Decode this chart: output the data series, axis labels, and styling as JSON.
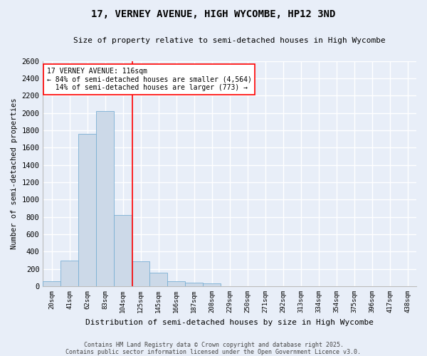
{
  "title": "17, VERNEY AVENUE, HIGH WYCOMBE, HP12 3ND",
  "subtitle": "Size of property relative to semi-detached houses in High Wycombe",
  "xlabel": "Distribution of semi-detached houses by size in High Wycombe",
  "ylabel": "Number of semi-detached properties",
  "bar_color": "#ccd9e8",
  "bar_edge_color": "#7aafd4",
  "background_color": "#e8eef8",
  "grid_color": "#ffffff",
  "categories": [
    "20sqm",
    "41sqm",
    "62sqm",
    "83sqm",
    "104sqm",
    "125sqm",
    "145sqm",
    "166sqm",
    "187sqm",
    "208sqm",
    "229sqm",
    "250sqm",
    "271sqm",
    "292sqm",
    "313sqm",
    "334sqm",
    "354sqm",
    "375sqm",
    "396sqm",
    "417sqm",
    "438sqm"
  ],
  "values": [
    60,
    300,
    1760,
    2020,
    820,
    290,
    155,
    55,
    45,
    30,
    0,
    0,
    0,
    0,
    0,
    0,
    0,
    0,
    0,
    0,
    0
  ],
  "ylim": [
    0,
    2600
  ],
  "yticks": [
    0,
    200,
    400,
    600,
    800,
    1000,
    1200,
    1400,
    1600,
    1800,
    2000,
    2200,
    2400,
    2600
  ],
  "property_label": "17 VERNEY AVENUE: 116sqm",
  "pct_smaller": 84,
  "pct_smaller_count": 4564,
  "pct_larger": 14,
  "pct_larger_count": 773,
  "vline_x_idx": 4.52,
  "footer_line1": "Contains HM Land Registry data © Crown copyright and database right 2025.",
  "footer_line2": "Contains public sector information licensed under the Open Government Licence v3.0."
}
